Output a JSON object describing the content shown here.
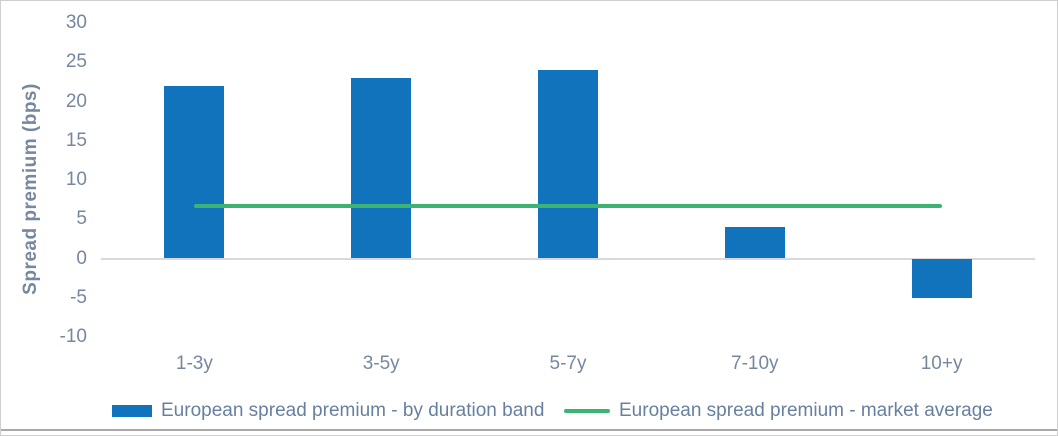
{
  "chart_data": {
    "type": "bar",
    "title": "",
    "categories": [
      "1-3y",
      "3-5y",
      "5-7y",
      "7-10y",
      "10+y"
    ],
    "series": [
      {
        "name": "European spread premium - by duration band",
        "type": "bar",
        "values": [
          22,
          23,
          24,
          4,
          -5
        ],
        "color": "#1273bd"
      },
      {
        "name": "European spread premium - market average",
        "type": "line",
        "values": [
          6.7,
          6.7,
          6.7,
          6.7,
          6.7
        ],
        "color": "#3cb373"
      }
    ],
    "xlabel": "",
    "ylabel": "Spread premium (bps)",
    "ylim": [
      -10,
      30
    ],
    "yticks": [
      30,
      25,
      20,
      15,
      10,
      5,
      0,
      -5,
      -10
    ],
    "grid": false,
    "legend_position": "bottom",
    "colors": {
      "axis_line": "#d9d9d9",
      "tick_text": "#76879e",
      "legend_text": "#68809f"
    }
  }
}
